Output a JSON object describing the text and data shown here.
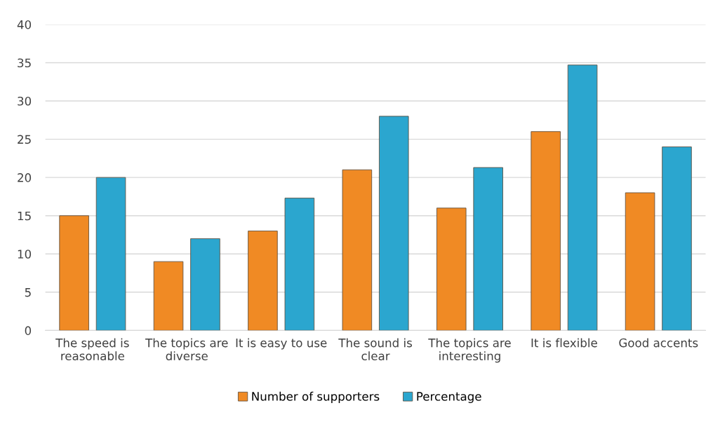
{
  "chart_data": {
    "type": "bar",
    "categories": [
      "The speed is\nreasonable",
      "The topics are\ndiverse",
      "It is easy to use",
      "The sound is\nclear",
      "The topics are\ninteresting",
      "It is flexible",
      "Good accents"
    ],
    "series": [
      {
        "name": "Number of supporters",
        "color": "#f08a24",
        "values": [
          15,
          9,
          13,
          21,
          16,
          26,
          18
        ]
      },
      {
        "name": "Percentage",
        "color": "#2ba6cf",
        "values": [
          20,
          12,
          17.3,
          28,
          21.3,
          34.7,
          24
        ]
      }
    ],
    "ylim": [
      0,
      40
    ],
    "yticks": [
      0,
      5,
      10,
      15,
      20,
      25,
      30,
      35,
      40
    ],
    "grid": "y",
    "legend": "bottom"
  }
}
